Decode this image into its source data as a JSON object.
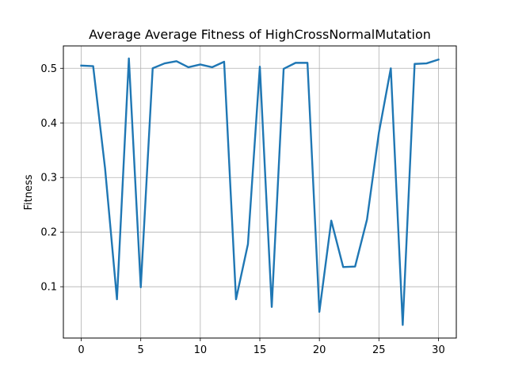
{
  "chart_data": {
    "type": "line",
    "title": "Average Average Fitness of HighCrossNormalMutation",
    "xlabel": "",
    "ylabel": "Fitness",
    "xlim": [
      -1.5,
      31.5
    ],
    "ylim": [
      0.006,
      0.541
    ],
    "xticks": [
      0,
      5,
      10,
      15,
      20,
      25,
      30
    ],
    "yticks": [
      0.1,
      0.2,
      0.3,
      0.4,
      0.5
    ],
    "ytick_labels": [
      "0.1",
      "0.2",
      "0.3",
      "0.4",
      "0.5"
    ],
    "grid": true,
    "line_color": "#1f77b4",
    "x": [
      0,
      1,
      2,
      3,
      4,
      5,
      6,
      7,
      8,
      9,
      10,
      11,
      12,
      13,
      14,
      15,
      16,
      17,
      18,
      19,
      20,
      21,
      22,
      23,
      24,
      25,
      26,
      27,
      28,
      29,
      30
    ],
    "series": [
      {
        "values": [
          0.505,
          0.504,
          0.317,
          0.077,
          0.518,
          0.099,
          0.5,
          0.509,
          0.513,
          0.502,
          0.507,
          0.502,
          0.512,
          0.077,
          0.178,
          0.503,
          0.063,
          0.499,
          0.51,
          0.51,
          0.054,
          0.221,
          0.136,
          0.137,
          0.223,
          0.382,
          0.5,
          0.03,
          0.508,
          0.509,
          0.516
        ]
      }
    ]
  }
}
